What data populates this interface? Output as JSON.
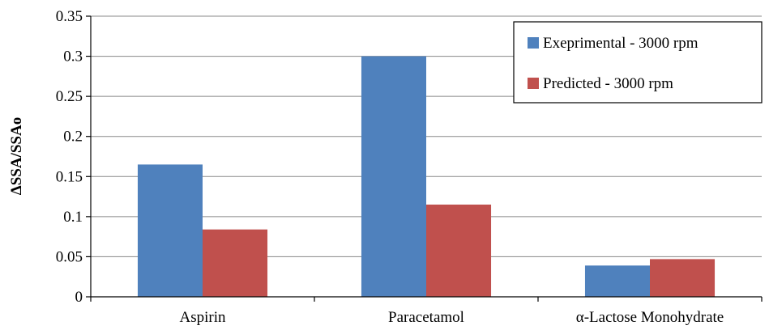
{
  "chart_data": {
    "type": "bar",
    "categories": [
      "Aspirin",
      "Paracetamol",
      "α-Lactose Monohydrate"
    ],
    "series": [
      {
        "name": "Exeprimental - 3000 rpm",
        "color": "#4F81BD",
        "values": [
          0.165,
          0.3,
          0.039
        ]
      },
      {
        "name": "Predicted - 3000 rpm",
        "color": "#C0504D",
        "values": [
          0.084,
          0.115,
          0.047
        ]
      }
    ],
    "xlabel": "",
    "ylabel": "ΔSSA/SSAo",
    "ylim": [
      0,
      0.35
    ],
    "yticks": [
      0,
      0.05,
      0.1,
      0.15,
      0.2,
      0.25,
      0.3,
      0.35
    ],
    "ytick_labels": [
      "0",
      "0.05",
      "0.1",
      "0.15",
      "0.2",
      "0.25",
      "0.3",
      "0.35"
    ],
    "grid": true,
    "legend_position": "top-right"
  }
}
